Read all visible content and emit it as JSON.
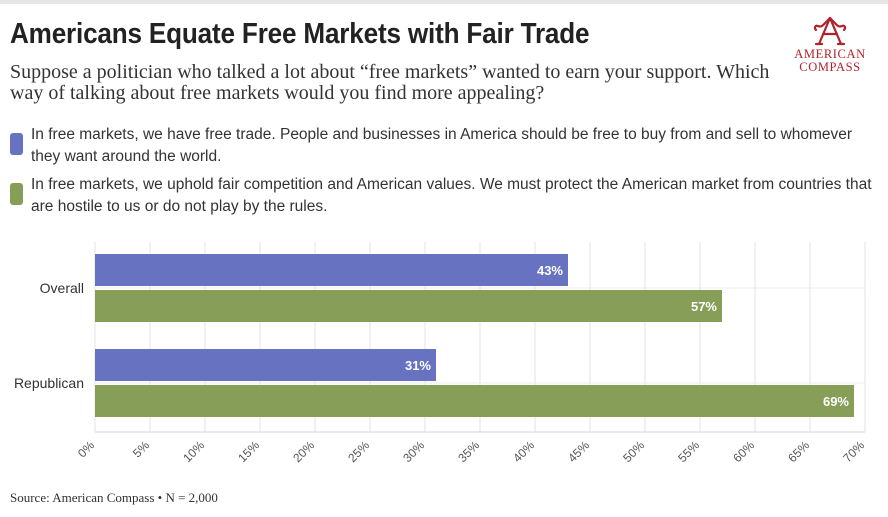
{
  "header": {
    "title": "Americans Equate Free Markets with Fair Trade",
    "subtitle": "Suppose a politician who talked a lot about “free markets” wanted to earn your support. Which way of talking about free markets would you find more appealing?"
  },
  "logo": {
    "line1": "AMERICAN",
    "line2": "COMPASS",
    "icon": "compass-a-logo",
    "color": "#b0222c"
  },
  "legend": [
    {
      "label": "In free markets, we have free trade. People and businesses in America should be free to buy from and sell to whomever they want around the world.",
      "color": "#6773c1"
    },
    {
      "label": "In free markets, we uphold fair competition and American values. We must protect the American market from countries that are hostile to us or do not play by the rules.",
      "color": "#869e57"
    }
  ],
  "chart_data": {
    "type": "bar",
    "orientation": "horizontal",
    "title": "Americans Equate Free Markets with Fair Trade",
    "categories": [
      "Overall",
      "Republican"
    ],
    "series": [
      {
        "name": "In free markets, we have free trade. People and businesses in America should be free to buy from and sell to whomever they want around the world.",
        "values": [
          43,
          31
        ],
        "labels": [
          "43%",
          "31%"
        ],
        "color": "#6773c1"
      },
      {
        "name": "In free markets, we uphold fair competition and American values. We must protect the American market from countries that are hostile to us or do not play by the rules.",
        "values": [
          57,
          69
        ],
        "labels": [
          "57%",
          "69%"
        ],
        "color": "#869e57"
      }
    ],
    "xlim": [
      0,
      70
    ],
    "xticks": [
      0,
      5,
      10,
      15,
      20,
      25,
      30,
      35,
      40,
      45,
      50,
      55,
      60,
      65,
      70
    ],
    "xtick_labels": [
      "0%",
      "5%",
      "10%",
      "15%",
      "20%",
      "25%",
      "30%",
      "35%",
      "40%",
      "45%",
      "50%",
      "55%",
      "60%",
      "65%",
      "70%"
    ],
    "xlabel": "",
    "ylabel": "",
    "grid": true
  },
  "footer": {
    "source": "Source: American Compass • N = 2,000"
  }
}
